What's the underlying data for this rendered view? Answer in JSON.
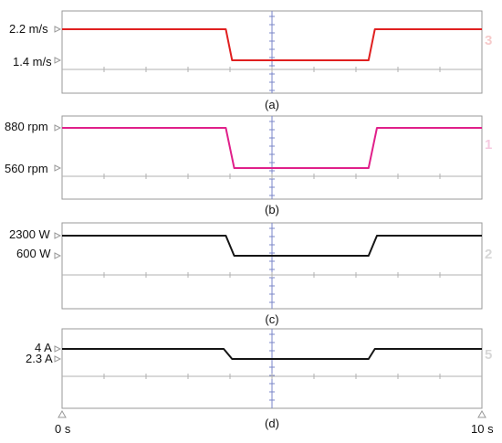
{
  "chart_data": [
    {
      "type": "line",
      "caption": "(a)",
      "channel": "3",
      "color": "#e02020",
      "channel_color": "#f0a0a0",
      "levels": [
        {
          "label": "2.2 m/s",
          "value": 2.2
        },
        {
          "label": "1.4 m/s",
          "value": 1.4
        }
      ],
      "series": [
        {
          "x": [
            0,
            3.9,
            4.05,
            7.3,
            7.45,
            10
          ],
          "y": [
            2.2,
            2.2,
            1.4,
            1.4,
            2.2,
            2.2
          ]
        }
      ]
    },
    {
      "type": "line",
      "caption": "(b)",
      "channel": "1",
      "color": "#e0208a",
      "channel_color": "#f0a0c8",
      "levels": [
        {
          "label": "880 rpm",
          "value": 880
        },
        {
          "label": "560 rpm",
          "value": 560
        }
      ],
      "series": [
        {
          "x": [
            0,
            3.9,
            4.1,
            7.3,
            7.5,
            10
          ],
          "y": [
            880,
            880,
            560,
            560,
            880,
            880
          ]
        }
      ]
    },
    {
      "type": "line",
      "caption": "(c)",
      "channel": "2",
      "color": "#151515",
      "channel_color": "#b8b8b8",
      "levels": [
        {
          "label": "2300 W",
          "value": 2300
        },
        {
          "label": "600 W",
          "value": 600
        }
      ],
      "series": [
        {
          "x": [
            0,
            3.9,
            4.1,
            7.3,
            7.5,
            10
          ],
          "y": [
            2300,
            2300,
            600,
            600,
            2300,
            2300
          ]
        }
      ]
    },
    {
      "type": "line",
      "caption": "(d)",
      "channel": "5",
      "color": "#151515",
      "channel_color": "#b8b8b8",
      "levels": [
        {
          "label": "4 A",
          "value": 4
        },
        {
          "label": "2.3 A",
          "value": 2.3
        }
      ],
      "series": [
        {
          "x": [
            0,
            3.85,
            4.05,
            7.3,
            7.45,
            10
          ],
          "y": [
            4,
            4,
            2.3,
            2.3,
            4,
            4
          ]
        }
      ]
    }
  ],
  "time_axis": {
    "start_label": "0 s",
    "end_label": "10 s",
    "xlim": [
      0,
      10
    ]
  }
}
